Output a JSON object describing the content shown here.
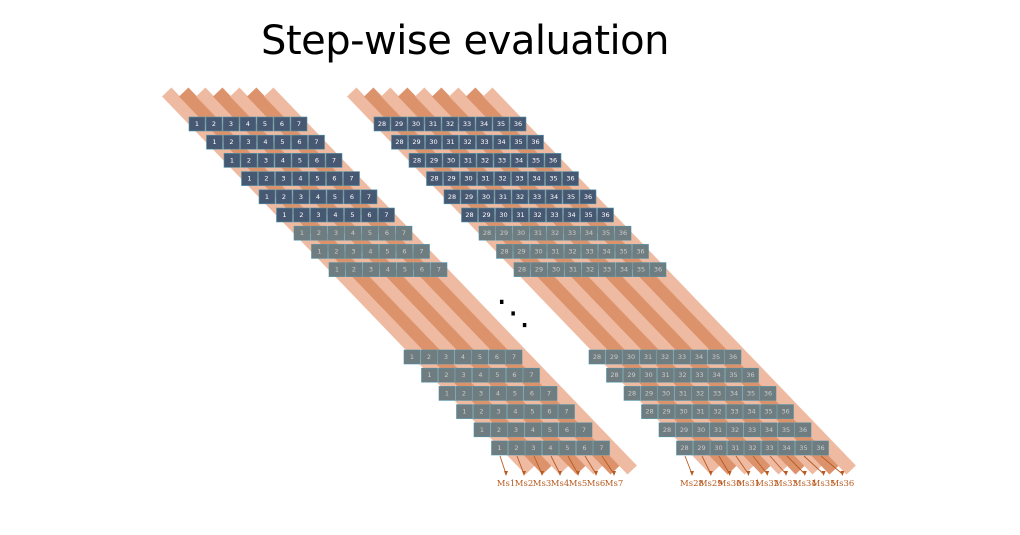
{
  "title": "Step-wise evaluation",
  "ellipsis": "⋱",
  "colors": {
    "band_light": "#eeb79c",
    "band_dark": "#db8e65",
    "cell_solid": "#465872",
    "cell_faded": "#6f7c80",
    "cell_edge": "#4f93a8",
    "cell_text": "#ffffff",
    "label": "#b85a20"
  },
  "blocks": [
    {
      "name": "top-left",
      "numbers": [
        "1",
        "2",
        "3",
        "4",
        "5",
        "6",
        "7"
      ],
      "rows": 9,
      "faded_from_row": 6
    },
    {
      "name": "top-right",
      "numbers": [
        "28",
        "29",
        "30",
        "31",
        "32",
        "33",
        "34",
        "35",
        "36"
      ],
      "rows": 9,
      "faded_from_row": 6
    },
    {
      "name": "bottom-left",
      "numbers": [
        "1",
        "2",
        "3",
        "4",
        "5",
        "6",
        "7"
      ],
      "rows": 6,
      "faded_from_row": 0
    },
    {
      "name": "bottom-right",
      "numbers": [
        "28",
        "29",
        "30",
        "31",
        "32",
        "33",
        "34",
        "35",
        "36"
      ],
      "rows": 6,
      "faded_from_row": 0
    }
  ],
  "labels_left": [
    "Ms1",
    "Ms2",
    "Ms3",
    "Ms4",
    "Ms5",
    "Ms6",
    "Ms7"
  ],
  "labels_right": [
    "Ms28",
    "Ms29",
    "Ms30",
    "Ms31",
    "Ms32",
    "Ms33",
    "Ms34",
    "Ms35",
    "Ms36"
  ]
}
